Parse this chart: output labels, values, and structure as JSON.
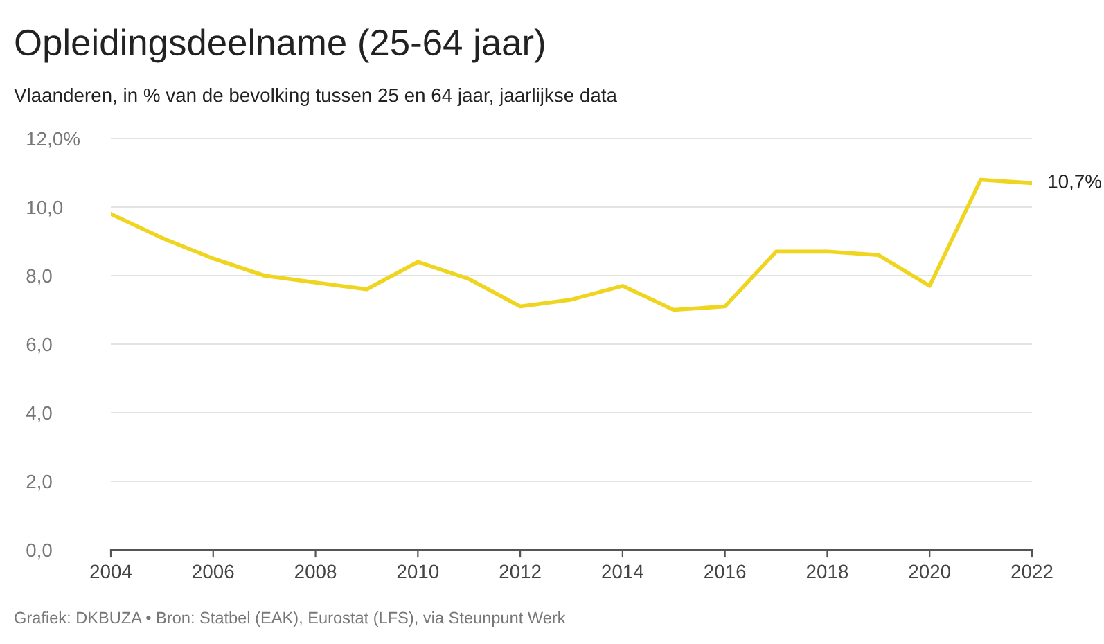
{
  "chart_data": {
    "type": "line",
    "title": "Opleidingsdeelname (25-64 jaar)",
    "subtitle": "Vlaanderen, in % van de bevolking tussen 25 en 64 jaar, jaarlijkse data",
    "x": [
      2004,
      2005,
      2006,
      2007,
      2008,
      2009,
      2010,
      2011,
      2012,
      2013,
      2014,
      2015,
      2016,
      2017,
      2018,
      2019,
      2020,
      2021,
      2022
    ],
    "series": [
      {
        "color": "#efd51f",
        "values": [
          9.8,
          9.1,
          8.5,
          8.0,
          7.8,
          7.6,
          8.4,
          7.9,
          7.1,
          7.3,
          7.7,
          7.0,
          7.1,
          8.7,
          8.7,
          8.6,
          7.7,
          10.8,
          10.7
        ]
      }
    ],
    "xlim": [
      2004,
      2022
    ],
    "xticks": [
      2004,
      2006,
      2008,
      2010,
      2012,
      2014,
      2016,
      2018,
      2020,
      2022
    ],
    "ylim": [
      0,
      12
    ],
    "yticks": [
      {
        "value": 0,
        "label": "0,0"
      },
      {
        "value": 2,
        "label": "2,0"
      },
      {
        "value": 4,
        "label": "4,0"
      },
      {
        "value": 6,
        "label": "6,0"
      },
      {
        "value": 8,
        "label": "8,0"
      },
      {
        "value": 10,
        "label": "10,0"
      },
      {
        "value": 12,
        "label": "12,0%"
      }
    ],
    "grid": "y",
    "marker": "none",
    "line_style": "solid",
    "annotations": [
      {
        "text": "10,7%",
        "x": 2022,
        "y": 10.7
      },
      "Grafiek: DKBUZA • Bron: Statbel (EAK), Eurostat (LFS), via Steunpunt Werk"
    ]
  }
}
